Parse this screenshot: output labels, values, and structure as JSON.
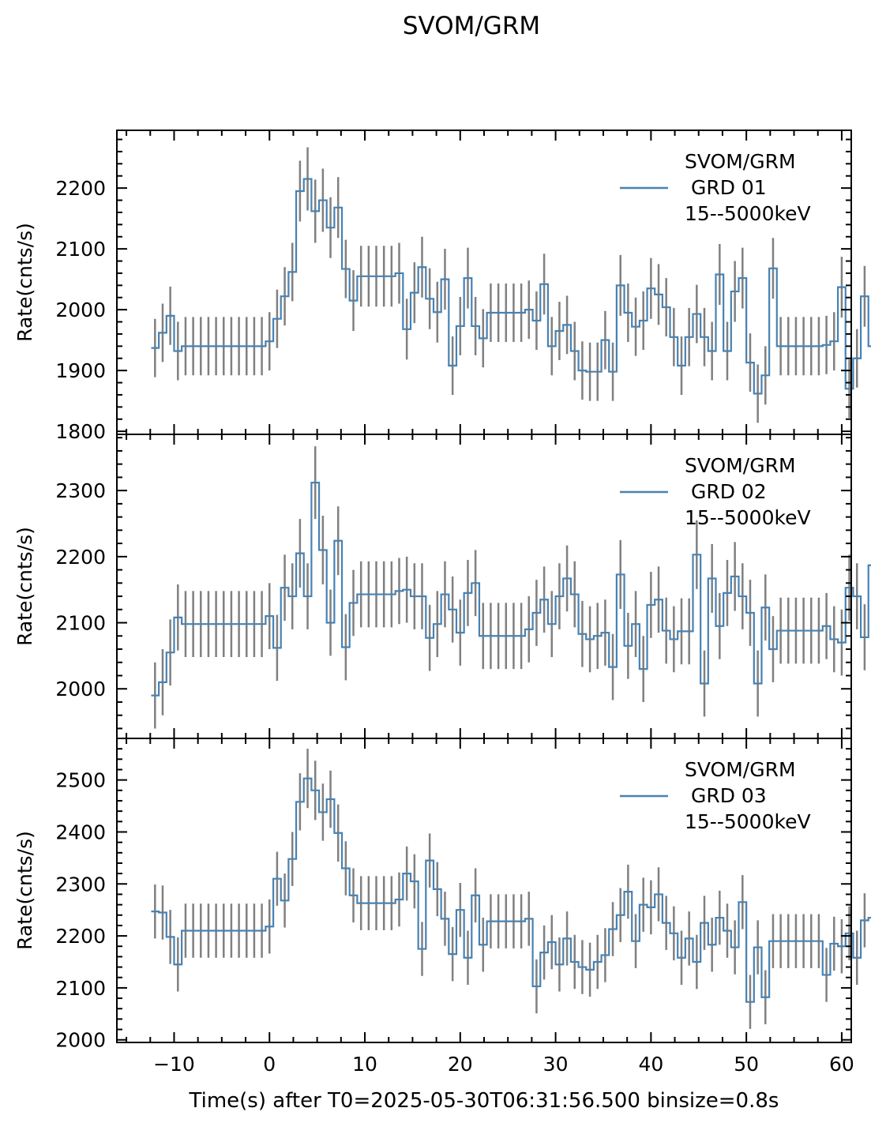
{
  "figure": {
    "title": "SVOM/GRM",
    "xlabel": "Time(s) after T0=2025-05-30T06:31:56.500 binsize=0.8s",
    "line_color": "#4682b4",
    "error_color": "#808080"
  },
  "chart_data": [
    {
      "type": "line",
      "legend": [
        "SVOM/GRM",
        " GRD 01",
        "15--5000keV"
      ],
      "legend_position": "top-right",
      "ylabel": "Rate(cnts/s)",
      "xlim": [
        -16,
        61
      ],
      "ylim": [
        1795,
        2295
      ],
      "yticks": [
        1800,
        1900,
        2000,
        2100,
        2200
      ],
      "xticks": [
        -10,
        0,
        10,
        20,
        30,
        40,
        50,
        60
      ],
      "binsize": 0.8,
      "x_start": -12.4,
      "values": [
        1937,
        1962,
        1990,
        1932,
        1940,
        1940,
        1940,
        1940,
        1940,
        1940,
        1940,
        1940,
        1940,
        1940,
        1940,
        1948,
        1985,
        2022,
        2062,
        2195,
        2215,
        2162,
        2180,
        2135,
        2168,
        2067,
        2015,
        2055,
        2055,
        2055,
        2055,
        2055,
        2060,
        1968,
        2028,
        2070,
        2018,
        1996,
        2050,
        1908,
        1973,
        2052,
        1973,
        1953,
        1995,
        1995,
        1995,
        1995,
        1995,
        2000,
        1982,
        2042,
        1940,
        1965,
        1975,
        1932,
        1900,
        1898,
        1898,
        1950,
        1898,
        2040,
        1995,
        1972,
        1982,
        2035,
        2025,
        2004,
        1955,
        1908,
        1955,
        1993,
        1955,
        1932,
        2058,
        1932,
        2030,
        2052,
        1913,
        1862,
        1892,
        2068,
        1940,
        1940,
        1940,
        1940,
        1940,
        1940,
        1942,
        1948,
        2037,
        1870,
        1920,
        2022,
        1940,
        1946
      ],
      "errors": [
        48,
        48,
        48,
        48,
        48,
        48,
        48,
        48,
        48,
        48,
        48,
        48,
        48,
        48,
        48,
        48,
        48,
        48,
        48,
        50,
        52,
        52,
        52,
        50,
        50,
        48,
        50,
        50,
        50,
        50,
        50,
        50,
        50,
        50,
        50,
        50,
        50,
        50,
        50,
        48,
        48,
        50,
        48,
        48,
        48,
        48,
        48,
        48,
        48,
        48,
        48,
        50,
        48,
        48,
        48,
        48,
        48,
        48,
        48,
        48,
        48,
        50,
        48,
        48,
        48,
        50,
        50,
        48,
        48,
        48,
        48,
        48,
        48,
        48,
        50,
        48,
        50,
        50,
        48,
        48,
        48,
        50,
        48,
        48,
        48,
        48,
        48,
        48,
        48,
        48,
        50,
        48,
        48,
        50,
        48,
        48
      ]
    },
    {
      "type": "line",
      "legend": [
        "SVOM/GRM",
        " GRD 02",
        "15--5000keV"
      ],
      "legend_position": "top-right",
      "ylabel": "Rate(cnts/s)",
      "xlim": [
        -16,
        61
      ],
      "ylim": [
        1925,
        2385
      ],
      "yticks": [
        2000,
        2100,
        2200,
        2300
      ],
      "xticks": [
        -10,
        0,
        10,
        20,
        30,
        40,
        50,
        60
      ],
      "binsize": 0.8,
      "x_start": -12.4,
      "values": [
        1990,
        2010,
        2055,
        2108,
        2098,
        2098,
        2098,
        2098,
        2098,
        2098,
        2098,
        2098,
        2098,
        2098,
        2098,
        2110,
        2062,
        2153,
        2140,
        2205,
        2140,
        2312,
        2210,
        2100,
        2224,
        2063,
        2130,
        2143,
        2143,
        2143,
        2143,
        2143,
        2148,
        2150,
        2140,
        2140,
        2077,
        2098,
        2143,
        2120,
        2085,
        2145,
        2160,
        2080,
        2080,
        2080,
        2080,
        2080,
        2080,
        2090,
        2115,
        2135,
        2098,
        2140,
        2167,
        2143,
        2083,
        2075,
        2080,
        2085,
        2033,
        2173,
        2065,
        2098,
        2030,
        2127,
        2135,
        2088,
        2075,
        2087,
        2087,
        2203,
        2008,
        2167,
        2095,
        2145,
        2170,
        2140,
        2115,
        2008,
        2123,
        2060,
        2088,
        2088,
        2088,
        2088,
        2088,
        2088,
        2095,
        2075,
        2070,
        2153,
        2140,
        2078,
        2187,
        2066
      ],
      "errors": [
        50,
        50,
        50,
        50,
        50,
        50,
        50,
        50,
        50,
        50,
        50,
        50,
        50,
        50,
        50,
        50,
        50,
        50,
        50,
        52,
        50,
        55,
        52,
        50,
        52,
        50,
        50,
        50,
        50,
        50,
        50,
        50,
        50,
        50,
        50,
        50,
        50,
        50,
        50,
        50,
        50,
        50,
        50,
        50,
        50,
        50,
        50,
        50,
        50,
        50,
        50,
        50,
        50,
        50,
        50,
        50,
        50,
        50,
        50,
        50,
        50,
        52,
        50,
        50,
        50,
        50,
        50,
        50,
        50,
        50,
        50,
        52,
        50,
        52,
        50,
        50,
        52,
        50,
        50,
        50,
        50,
        50,
        50,
        50,
        50,
        50,
        50,
        50,
        50,
        50,
        50,
        50,
        50,
        50,
        52,
        50
      ]
    },
    {
      "type": "line",
      "legend": [
        "SVOM/GRM",
        " GRD 03",
        "15--5000keV"
      ],
      "legend_position": "top-right",
      "ylabel": "Rate(cnts/s)",
      "xlim": [
        -16,
        61
      ],
      "ylim": [
        1995,
        2580
      ],
      "yticks": [
        2000,
        2100,
        2200,
        2300,
        2400,
        2500
      ],
      "xticks": [
        -10,
        0,
        10,
        20,
        30,
        40,
        50,
        60
      ],
      "binsize": 0.8,
      "x_start": -12.4,
      "values": [
        2247,
        2245,
        2198,
        2145,
        2210,
        2210,
        2210,
        2210,
        2210,
        2210,
        2210,
        2210,
        2210,
        2210,
        2210,
        2218,
        2310,
        2268,
        2348,
        2458,
        2503,
        2480,
        2438,
        2463,
        2398,
        2330,
        2278,
        2263,
        2263,
        2263,
        2263,
        2263,
        2270,
        2320,
        2305,
        2175,
        2345,
        2290,
        2233,
        2165,
        2250,
        2158,
        2278,
        2183,
        2228,
        2228,
        2228,
        2228,
        2228,
        2233,
        2103,
        2168,
        2188,
        2145,
        2195,
        2150,
        2140,
        2135,
        2150,
        2163,
        2213,
        2240,
        2285,
        2190,
        2260,
        2255,
        2280,
        2225,
        2205,
        2158,
        2195,
        2150,
        2225,
        2183,
        2235,
        2210,
        2178,
        2265,
        2073,
        2178,
        2082,
        2190,
        2190,
        2190,
        2190,
        2190,
        2190,
        2190,
        2125,
        2185,
        2180,
        2205,
        2158,
        2230,
        2235,
        2237
      ],
      "errors": [
        52,
        52,
        52,
        52,
        52,
        52,
        52,
        52,
        52,
        52,
        52,
        52,
        52,
        52,
        52,
        52,
        52,
        52,
        52,
        55,
        57,
        57,
        55,
        55,
        55,
        52,
        52,
        52,
        52,
        52,
        52,
        52,
        52,
        52,
        52,
        52,
        52,
        52,
        52,
        52,
        52,
        52,
        52,
        52,
        52,
        52,
        52,
        52,
        52,
        52,
        52,
        52,
        52,
        52,
        52,
        52,
        52,
        52,
        52,
        52,
        52,
        52,
        52,
        52,
        52,
        52,
        52,
        52,
        52,
        52,
        52,
        52,
        52,
        52,
        52,
        52,
        52,
        52,
        52,
        52,
        52,
        52,
        52,
        52,
        52,
        52,
        52,
        52,
        52,
        52,
        52,
        52,
        52,
        52,
        52,
        52
      ]
    }
  ]
}
